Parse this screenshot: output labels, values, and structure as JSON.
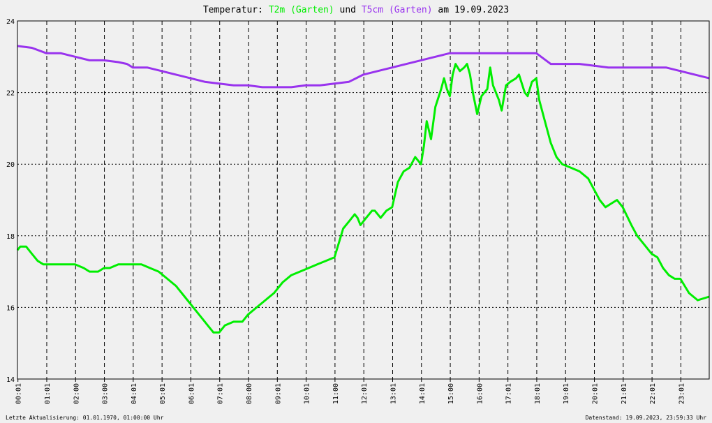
{
  "chart_data": {
    "type": "line",
    "title_prefix": "Temperatur: ",
    "title_series1": "T2m (Garten)",
    "title_mid": " und ",
    "title_series2": "T5cm (Garten)",
    "title_suffix": " am 19.09.2023",
    "xlabel": "",
    "ylabel": "",
    "ylim": [
      14,
      24
    ],
    "xlim_hours": [
      0,
      24
    ],
    "yticks": [
      14,
      16,
      18,
      20,
      22,
      24
    ],
    "xticks": [
      "00:01",
      "01:01",
      "02:00",
      "03:00",
      "04:01",
      "05:01",
      "06:01",
      "07:01",
      "08:00",
      "09:01",
      "10:01",
      "11:00",
      "12:01",
      "13:01",
      "14:01",
      "15:00",
      "16:00",
      "17:01",
      "18:01",
      "19:01",
      "20:01",
      "21:01",
      "22:01",
      "23:01"
    ],
    "grid": true,
    "colors": {
      "t2m": "#00ee00",
      "t5cm": "#9933ee",
      "axis": "#000000",
      "grid": "#000000",
      "background": "#f0f0f0"
    },
    "series": [
      {
        "name": "T2m (Garten)",
        "x": [
          0.0,
          0.1,
          0.3,
          0.5,
          0.7,
          0.9,
          1.2,
          1.6,
          2.0,
          2.3,
          2.5,
          2.8,
          3.0,
          3.2,
          3.5,
          3.8,
          4.0,
          4.3,
          4.6,
          4.9,
          5.2,
          5.5,
          5.8,
          6.1,
          6.4,
          6.6,
          6.8,
          7.0,
          7.2,
          7.5,
          7.8,
          8.0,
          8.3,
          8.6,
          8.9,
          9.2,
          9.5,
          9.8,
          10.1,
          10.4,
          10.7,
          11.0,
          11.15,
          11.3,
          11.5,
          11.7,
          11.8,
          11.9,
          12.1,
          12.3,
          12.4,
          12.6,
          12.8,
          13.0,
          13.2,
          13.4,
          13.6,
          13.8,
          14.0,
          14.1,
          14.2,
          14.35,
          14.5,
          14.7,
          14.8,
          14.9,
          15.0,
          15.1,
          15.2,
          15.35,
          15.5,
          15.6,
          15.7,
          15.8,
          15.95,
          16.1,
          16.3,
          16.4,
          16.5,
          16.7,
          16.8,
          16.95,
          17.1,
          17.3,
          17.4,
          17.6,
          17.7,
          17.85,
          18.0,
          18.1,
          18.3,
          18.5,
          18.7,
          18.9,
          19.2,
          19.5,
          19.8,
          20.0,
          20.2,
          20.4,
          20.6,
          20.8,
          21.0,
          21.3,
          21.5,
          21.8,
          22.0,
          22.2,
          22.4,
          22.6,
          22.8,
          23.0,
          23.3,
          23.6,
          24.0
        ],
        "values": [
          17.6,
          17.7,
          17.7,
          17.5,
          17.3,
          17.2,
          17.2,
          17.2,
          17.2,
          17.1,
          17.0,
          17.0,
          17.1,
          17.1,
          17.2,
          17.2,
          17.2,
          17.2,
          17.1,
          17.0,
          16.8,
          16.6,
          16.3,
          16.0,
          15.7,
          15.5,
          15.3,
          15.3,
          15.5,
          15.6,
          15.6,
          15.8,
          16.0,
          16.2,
          16.4,
          16.7,
          16.9,
          17.0,
          17.1,
          17.2,
          17.3,
          17.4,
          17.8,
          18.2,
          18.4,
          18.6,
          18.5,
          18.3,
          18.5,
          18.7,
          18.7,
          18.5,
          18.7,
          18.8,
          19.5,
          19.8,
          19.9,
          20.2,
          20.0,
          20.5,
          21.2,
          20.7,
          21.6,
          22.1,
          22.4,
          22.1,
          21.9,
          22.5,
          22.8,
          22.6,
          22.7,
          22.8,
          22.5,
          22.0,
          21.4,
          21.9,
          22.1,
          22.7,
          22.2,
          21.8,
          21.5,
          22.2,
          22.3,
          22.4,
          22.5,
          22.0,
          21.9,
          22.3,
          22.4,
          21.8,
          21.2,
          20.6,
          20.2,
          20.0,
          19.9,
          19.8,
          19.6,
          19.3,
          19.0,
          18.8,
          18.9,
          19.0,
          18.8,
          18.3,
          18.0,
          17.7,
          17.5,
          17.4,
          17.1,
          16.9,
          16.8,
          16.8,
          16.4,
          16.2,
          16.3
        ]
      },
      {
        "name": "T5cm (Garten)",
        "x": [
          0.0,
          0.5,
          1.0,
          1.5,
          2.0,
          2.5,
          3.0,
          3.5,
          3.8,
          4.0,
          4.5,
          5.0,
          5.5,
          6.0,
          6.5,
          7.0,
          7.5,
          8.0,
          8.5,
          9.0,
          9.5,
          10.0,
          10.5,
          11.0,
          11.5,
          12.0,
          12.5,
          13.0,
          13.5,
          14.0,
          14.5,
          15.0,
          15.5,
          16.0,
          16.5,
          17.0,
          17.5,
          18.0,
          18.5,
          19.0,
          19.5,
          20.0,
          20.5,
          21.0,
          21.5,
          22.0,
          22.5,
          23.0,
          23.5,
          24.0
        ],
        "values": [
          23.3,
          23.25,
          23.1,
          23.1,
          23.0,
          22.9,
          22.9,
          22.85,
          22.8,
          22.7,
          22.7,
          22.6,
          22.5,
          22.4,
          22.3,
          22.25,
          22.2,
          22.2,
          22.15,
          22.15,
          22.15,
          22.2,
          22.2,
          22.25,
          22.3,
          22.5,
          22.6,
          22.7,
          22.8,
          22.9,
          23.0,
          23.1,
          23.1,
          23.1,
          23.1,
          23.1,
          23.1,
          23.1,
          22.8,
          22.8,
          22.8,
          22.75,
          22.7,
          22.7,
          22.7,
          22.7,
          22.7,
          22.6,
          22.5,
          22.4
        ]
      }
    ],
    "footer_left": "Letzte Aktualisierung: 01.01.1970, 01:00:00 Uhr",
    "footer_right": "Datenstand: 19.09.2023, 23:59:33 Uhr"
  }
}
